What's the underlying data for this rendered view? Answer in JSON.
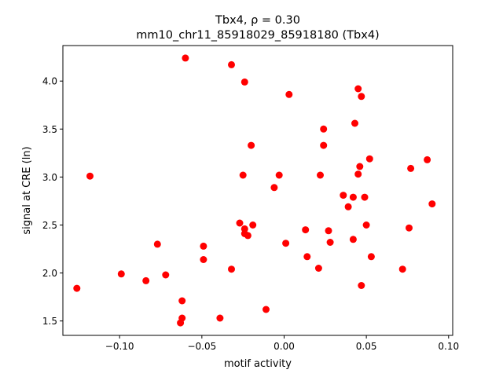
{
  "chart_data": {
    "type": "scatter",
    "title_line1": "Tbx4, ρ = 0.30",
    "title_line2": "mm10_chr11_85918029_85918180 (Tbx4)",
    "xlabel": "motif activity",
    "ylabel": "signal at CRE (ln)",
    "xlim": [
      -0.1345,
      0.1025
    ],
    "ylim": [
      1.35,
      4.37
    ],
    "xticks": [
      {
        "value": -0.1,
        "label": "−0.10"
      },
      {
        "value": -0.05,
        "label": "−0.05"
      },
      {
        "value": 0.0,
        "label": "0.00"
      },
      {
        "value": 0.05,
        "label": "0.05"
      },
      {
        "value": 0.1,
        "label": "0.10"
      }
    ],
    "yticks": [
      {
        "value": 1.5,
        "label": "1.5"
      },
      {
        "value": 2.0,
        "label": "2.0"
      },
      {
        "value": 2.5,
        "label": "2.5"
      },
      {
        "value": 3.0,
        "label": "3.0"
      },
      {
        "value": 3.5,
        "label": "3.5"
      },
      {
        "value": 4.0,
        "label": "4.0"
      }
    ],
    "grid": false,
    "marker_color": "#ff0000",
    "points": [
      {
        "x": -0.06,
        "y": 4.24
      },
      {
        "x": -0.032,
        "y": 4.17
      },
      {
        "x": -0.024,
        "y": 3.99
      },
      {
        "x": 0.003,
        "y": 3.86
      },
      {
        "x": 0.045,
        "y": 3.92
      },
      {
        "x": 0.047,
        "y": 3.84
      },
      {
        "x": 0.043,
        "y": 3.56
      },
      {
        "x": 0.024,
        "y": 3.5
      },
      {
        "x": 0.024,
        "y": 3.33
      },
      {
        "x": -0.02,
        "y": 3.33
      },
      {
        "x": 0.052,
        "y": 3.19
      },
      {
        "x": 0.087,
        "y": 3.18
      },
      {
        "x": 0.077,
        "y": 3.09
      },
      {
        "x": 0.046,
        "y": 3.11
      },
      {
        "x": 0.045,
        "y": 3.03
      },
      {
        "x": -0.118,
        "y": 3.01
      },
      {
        "x": -0.025,
        "y": 3.02
      },
      {
        "x": -0.003,
        "y": 3.02
      },
      {
        "x": 0.022,
        "y": 3.02
      },
      {
        "x": -0.006,
        "y": 2.89
      },
      {
        "x": 0.036,
        "y": 2.81
      },
      {
        "x": 0.042,
        "y": 2.79
      },
      {
        "x": 0.049,
        "y": 2.79
      },
      {
        "x": 0.039,
        "y": 2.69
      },
      {
        "x": 0.09,
        "y": 2.72
      },
      {
        "x": -0.027,
        "y": 2.52
      },
      {
        "x": -0.024,
        "y": 2.46
      },
      {
        "x": -0.019,
        "y": 2.5
      },
      {
        "x": -0.024,
        "y": 2.41
      },
      {
        "x": -0.022,
        "y": 2.39
      },
      {
        "x": 0.013,
        "y": 2.45
      },
      {
        "x": 0.027,
        "y": 2.44
      },
      {
        "x": 0.05,
        "y": 2.5
      },
      {
        "x": 0.076,
        "y": 2.47
      },
      {
        "x": 0.042,
        "y": 2.35
      },
      {
        "x": 0.028,
        "y": 2.32
      },
      {
        "x": 0.001,
        "y": 2.31
      },
      {
        "x": -0.077,
        "y": 2.3
      },
      {
        "x": -0.049,
        "y": 2.28
      },
      {
        "x": 0.014,
        "y": 2.17
      },
      {
        "x": 0.053,
        "y": 2.17
      },
      {
        "x": -0.049,
        "y": 2.14
      },
      {
        "x": -0.032,
        "y": 2.04
      },
      {
        "x": 0.021,
        "y": 2.05
      },
      {
        "x": 0.072,
        "y": 2.04
      },
      {
        "x": -0.099,
        "y": 1.99
      },
      {
        "x": -0.072,
        "y": 1.98
      },
      {
        "x": -0.084,
        "y": 1.92
      },
      {
        "x": 0.047,
        "y": 1.87
      },
      {
        "x": -0.126,
        "y": 1.84
      },
      {
        "x": -0.062,
        "y": 1.71
      },
      {
        "x": -0.011,
        "y": 1.62
      },
      {
        "x": -0.062,
        "y": 1.53
      },
      {
        "x": -0.039,
        "y": 1.53
      },
      {
        "x": -0.063,
        "y": 1.48
      }
    ]
  }
}
